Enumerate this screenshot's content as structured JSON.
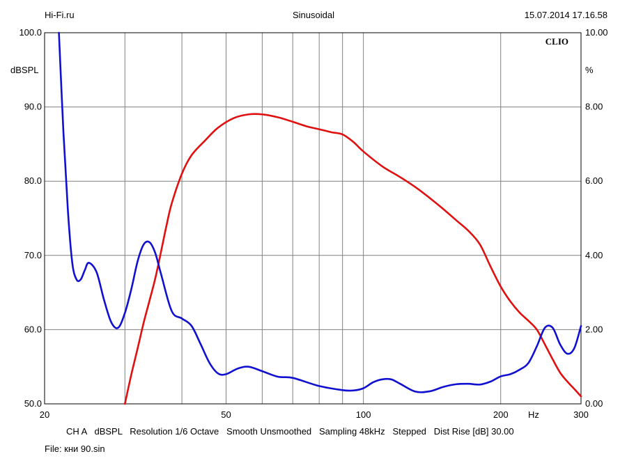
{
  "header": {
    "left": "Hi-Fi.ru",
    "center": "Sinusoidal",
    "right": "15.07.2014 17.16.58"
  },
  "watermark": "CLIO",
  "footer": {
    "info": "CH A   dBSPL   Resolution 1/6 Octave   Smooth Unsmoothed   Sampling 48kHz   Stepped   Dist Rise [dB] 30.00",
    "file": "File: кни 90.sin"
  },
  "colors": {
    "spl": "#e01010",
    "distortion": "#1010d0",
    "grid": "#808080",
    "frame": "#000000"
  },
  "chart_data": {
    "type": "line",
    "xscale": "log",
    "xlim": [
      20,
      300
    ],
    "x_ticks": [
      "20",
      "50",
      "100",
      "200",
      "300"
    ],
    "x_unit": "Hz",
    "x_grid": [
      30,
      40,
      50,
      60,
      70,
      80,
      90,
      100,
      200
    ],
    "ylim": [
      50,
      100
    ],
    "ylabel": "dBSPL",
    "y_ticks": [
      "50.0",
      "60.0",
      "70.0",
      "80.0",
      "90.0",
      "100.0"
    ],
    "y2lim": [
      0,
      10
    ],
    "y2label": "%",
    "y2_ticks": [
      "0.00",
      "2.00",
      "4.00",
      "6.00",
      "8.00",
      "10.00"
    ],
    "grid": true,
    "series": [
      {
        "key": "spl",
        "axis": "left",
        "x": [
          30,
          31,
          32,
          33,
          34,
          35,
          36,
          37,
          38,
          40,
          42,
          45,
          48,
          52,
          56,
          60,
          65,
          70,
          75,
          80,
          85,
          90,
          95,
          100,
          110,
          120,
          130,
          140,
          150,
          160,
          170,
          180,
          190,
          200,
          210,
          220,
          230,
          240,
          250,
          260,
          270,
          280,
          290,
          300
        ],
        "y": [
          50,
          54,
          57.5,
          61,
          64,
          67,
          70.5,
          74,
          77,
          81,
          83.5,
          85.5,
          87.2,
          88.5,
          89,
          89,
          88.6,
          88,
          87.4,
          87,
          86.6,
          86.3,
          85.3,
          84,
          82,
          80.6,
          79.2,
          77.7,
          76.2,
          74.7,
          73.3,
          71.5,
          68.5,
          65.8,
          63.8,
          62.3,
          61.2,
          60,
          58,
          56,
          54.2,
          53,
          52,
          51
        ]
      },
      {
        "key": "distortion",
        "axis": "right",
        "x": [
          21.5,
          22,
          22.5,
          23,
          23.5,
          24,
          24.5,
          25,
          26,
          27,
          28,
          29,
          30,
          31,
          32,
          33,
          34,
          35,
          36,
          38,
          40,
          42,
          44,
          46,
          48,
          50,
          53,
          56,
          60,
          65,
          70,
          80,
          90,
          95,
          100,
          105,
          110,
          115,
          120,
          130,
          140,
          150,
          160,
          170,
          180,
          190,
          200,
          210,
          220,
          230,
          240,
          250,
          260,
          270,
          280,
          290,
          300
        ],
        "y": [
          10,
          7.3,
          5.2,
          3.8,
          3.35,
          3.35,
          3.6,
          3.8,
          3.55,
          2.8,
          2.2,
          2.05,
          2.45,
          3.1,
          3.85,
          4.3,
          4.35,
          4.05,
          3.5,
          2.5,
          2.3,
          2.1,
          1.6,
          1.1,
          0.82,
          0.8,
          0.95,
          1.0,
          0.88,
          0.73,
          0.7,
          0.48,
          0.37,
          0.36,
          0.42,
          0.58,
          0.66,
          0.66,
          0.55,
          0.33,
          0.34,
          0.46,
          0.53,
          0.54,
          0.52,
          0.6,
          0.74,
          0.8,
          0.92,
          1.1,
          1.55,
          2.05,
          2.05,
          1.6,
          1.35,
          1.5,
          2.1
        ]
      }
    ]
  }
}
